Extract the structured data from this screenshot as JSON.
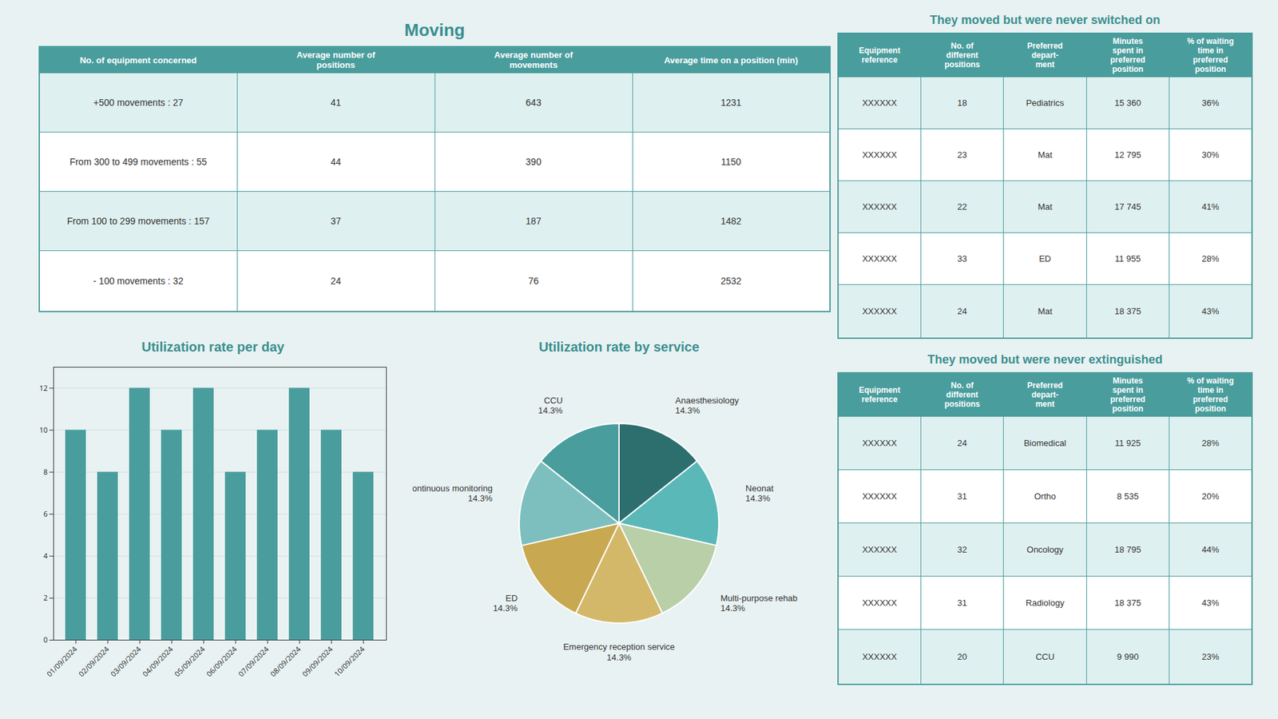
{
  "chart_data": [
    {
      "type": "table",
      "title": "Moving",
      "headers": [
        "No. of equipment concerned",
        "Average number of\npositions",
        "Average number of\nmovements",
        "Average time on a position (min)"
      ],
      "rows": [
        [
          "+500 movements : 27",
          "41",
          "643",
          "1231"
        ],
        [
          "From 300 to 499 movements : 55",
          "44",
          "390",
          "1150"
        ],
        [
          "From 100 to 299 movements : 157",
          "37",
          "187",
          "1482"
        ],
        [
          "- 100 movements : 32",
          "24",
          "76",
          "2532"
        ]
      ]
    },
    {
      "type": "bar",
      "title": "Utilization rate per day",
      "categories": [
        "01/09/2024",
        "02/09/2024",
        "03/09/2024",
        "04/09/2024",
        "05/09/2024",
        "06/09/2024",
        "07/09/2024",
        "08/09/2024",
        "09/09/2024",
        "10/09/2024"
      ],
      "values": [
        10,
        8,
        12,
        10,
        12,
        8,
        10,
        12,
        10,
        8
      ],
      "color": "#4a9d9d",
      "ylim": [
        0,
        13
      ],
      "yticks": [
        0,
        2,
        4,
        6,
        8,
        10,
        12
      ],
      "grid": true
    },
    {
      "type": "pie",
      "title": "Utilization rate by service",
      "categories": [
        "Anaesthesiology",
        "Neonat",
        "Multi-purpose rehab",
        "Emergency reception service",
        "ED",
        "Continuous monitoring",
        "CCU"
      ],
      "values": [
        14.3,
        14.3,
        14.3,
        14.3,
        14.3,
        14.3,
        14.3
      ],
      "value_labels": [
        "14.3%",
        "14.3%",
        "14.3%",
        "14.3%",
        "14.3%",
        "14.3%",
        "14.3%"
      ],
      "colors": [
        "#2d6e6e",
        "#5ab8b8",
        "#b8cfa8",
        "#d4b86a",
        "#c8a850",
        "#7dbfbf",
        "#4a9d9d"
      ]
    },
    {
      "type": "table",
      "title": "They moved but were never switched on",
      "headers": [
        "Equipment\nreference",
        "No. of\ndifferent\npositions",
        "Preferred\ndepart-\nment",
        "Minutes\nspent in\npreferred\nposition",
        "% of waiting\ntime in\npreferred\nposition"
      ],
      "rows": [
        [
          "XXXXXX",
          "18",
          "Pediatrics",
          "15 360",
          "36%"
        ],
        [
          "XXXXXX",
          "23",
          "Mat",
          "12 795",
          "30%"
        ],
        [
          "XXXXXX",
          "22",
          "Mat",
          "17 745",
          "41%"
        ],
        [
          "XXXXXX",
          "33",
          "ED",
          "11 955",
          "28%"
        ],
        [
          "XXXXXX",
          "24",
          "Mat",
          "18 375",
          "43%"
        ]
      ]
    },
    {
      "type": "table",
      "title": "They moved but were never extinguished",
      "headers": [
        "Equipment\nreference",
        "No. of\ndifferent\npositions",
        "Preferred\ndepart-\nment",
        "Minutes\nspent in\npreferred\nposition",
        "% of waiting\ntime in\npreferred\nposition"
      ],
      "rows": [
        [
          "XXXXXX",
          "24",
          "Biomedical",
          "11 925",
          "28%"
        ],
        [
          "XXXXXX",
          "31",
          "Ortho",
          "8 535",
          "20%"
        ],
        [
          "XXXXXX",
          "32",
          "Oncology",
          "18 795",
          "44%"
        ],
        [
          "XXXXXX",
          "31",
          "Radiology",
          "18 375",
          "43%"
        ],
        [
          "XXXXXX",
          "20",
          "CCU",
          "9 990",
          "23%"
        ]
      ]
    }
  ]
}
